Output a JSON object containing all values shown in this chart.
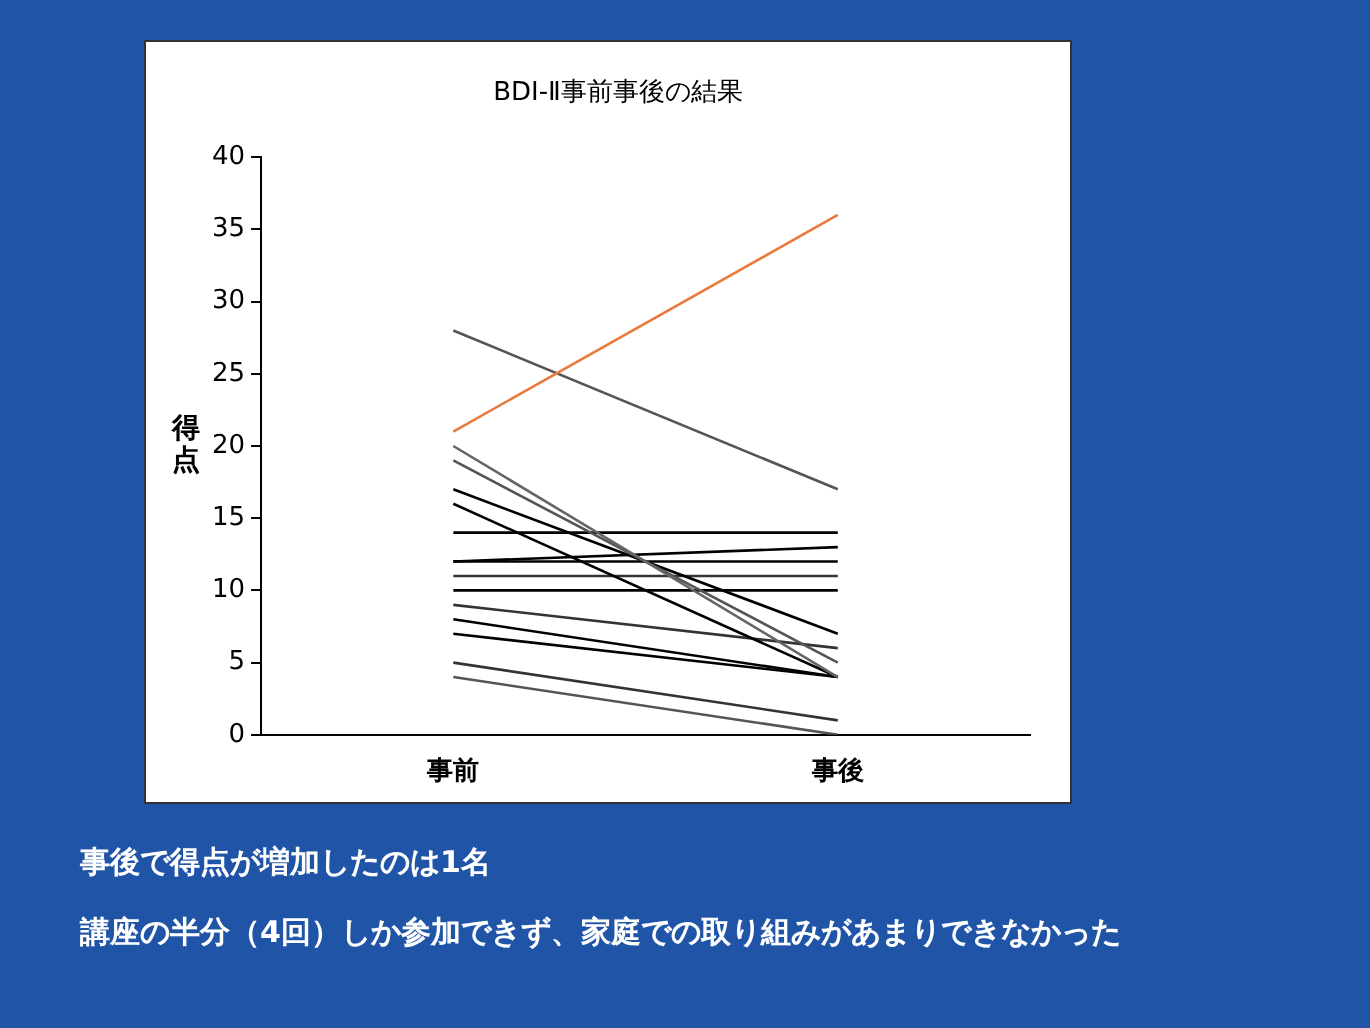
{
  "chart_data": {
    "type": "line",
    "title": "BDI-Ⅱ事前事後の結果",
    "ylabel": "得点",
    "categories": [
      "事前",
      "事後"
    ],
    "ylim": [
      0,
      40
    ],
    "yticks": [
      0,
      5,
      10,
      15,
      20,
      25,
      30,
      35,
      40
    ],
    "grid": false,
    "legend": false,
    "marker": "none",
    "series": [
      {
        "color": "#e87a3c",
        "values": [
          21,
          36
        ]
      },
      {
        "color": "#555555",
        "values": [
          28,
          17
        ]
      },
      {
        "color": "#666666",
        "values": [
          20,
          4
        ]
      },
      {
        "color": "#555555",
        "values": [
          19,
          5
        ]
      },
      {
        "color": "#000000",
        "values": [
          17,
          7
        ]
      },
      {
        "color": "#000000",
        "values": [
          16,
          4
        ]
      },
      {
        "color": "#000000",
        "values": [
          14,
          14
        ]
      },
      {
        "color": "#000000",
        "values": [
          12,
          13
        ]
      },
      {
        "color": "#000000",
        "values": [
          12,
          12
        ]
      },
      {
        "color": "#333333",
        "values": [
          11,
          11
        ]
      },
      {
        "color": "#000000",
        "values": [
          10,
          10
        ]
      },
      {
        "color": "#333333",
        "values": [
          9,
          6
        ]
      },
      {
        "color": "#000000",
        "values": [
          8,
          4
        ]
      },
      {
        "color": "#000000",
        "values": [
          7,
          4
        ]
      },
      {
        "color": "#333333",
        "values": [
          5,
          1
        ]
      },
      {
        "color": "#555555",
        "values": [
          4,
          0
        ]
      }
    ],
    "annotations": [
      "事後で得点が増加したのは1名",
      "講座の半分（4回）しか参加できず、家庭での取り組みがあまりできなかった"
    ]
  }
}
